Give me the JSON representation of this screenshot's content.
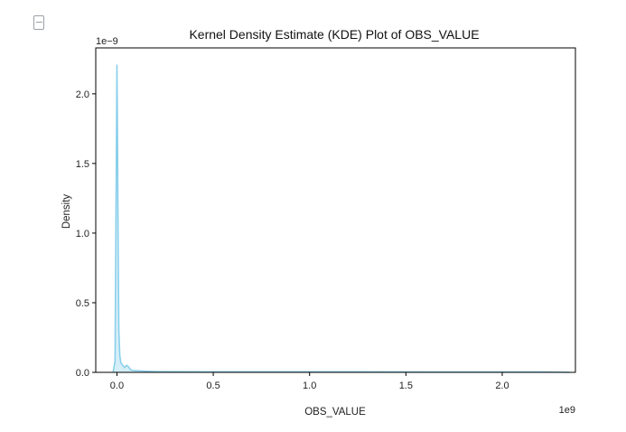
{
  "ui": {
    "output_icon": "output-cell-icon"
  },
  "chart_data": {
    "type": "area",
    "title": "Kernel Density Estimate (KDE) Plot of OBS_VALUE",
    "xlabel": "OBS_VALUE",
    "ylabel": "Density",
    "x_offset_label": "1e9",
    "y_offset_label": "1e−9",
    "x_scale": 1000000000.0,
    "y_scale": 1e-09,
    "xlim": [
      -0.11,
      2.38
    ],
    "ylim": [
      0,
      2.33
    ],
    "x_ticks": [
      0.0,
      0.5,
      1.0,
      1.5,
      2.0
    ],
    "x_tick_labels": [
      "0.0",
      "0.5",
      "1.0",
      "1.5",
      "2.0"
    ],
    "y_ticks": [
      0.0,
      0.5,
      1.0,
      1.5,
      2.0
    ],
    "y_tick_labels": [
      "0.0",
      "0.5",
      "1.0",
      "1.5",
      "2.0"
    ],
    "grid": false,
    "fill_color": "#87ceeb",
    "line_color": "#87ceeb",
    "series": [
      {
        "x": [
          -0.02,
          -0.01,
          0.0,
          0.002,
          0.006,
          0.01,
          0.015,
          0.02,
          0.03,
          0.04,
          0.05,
          0.06,
          0.07,
          0.08,
          0.09,
          0.1,
          0.15,
          0.2,
          0.3,
          0.5,
          0.8,
          1.0,
          1.3,
          1.6,
          2.0,
          2.2,
          2.3,
          2.35
        ],
        "y": [
          0.0,
          0.08,
          2.21,
          1.9,
          1.0,
          0.3,
          0.12,
          0.07,
          0.05,
          0.035,
          0.05,
          0.04,
          0.02,
          0.015,
          0.012,
          0.012,
          0.008,
          0.006,
          0.005,
          0.004,
          0.004,
          0.004,
          0.004,
          0.003,
          0.003,
          0.003,
          0.002,
          0.0
        ]
      }
    ]
  }
}
